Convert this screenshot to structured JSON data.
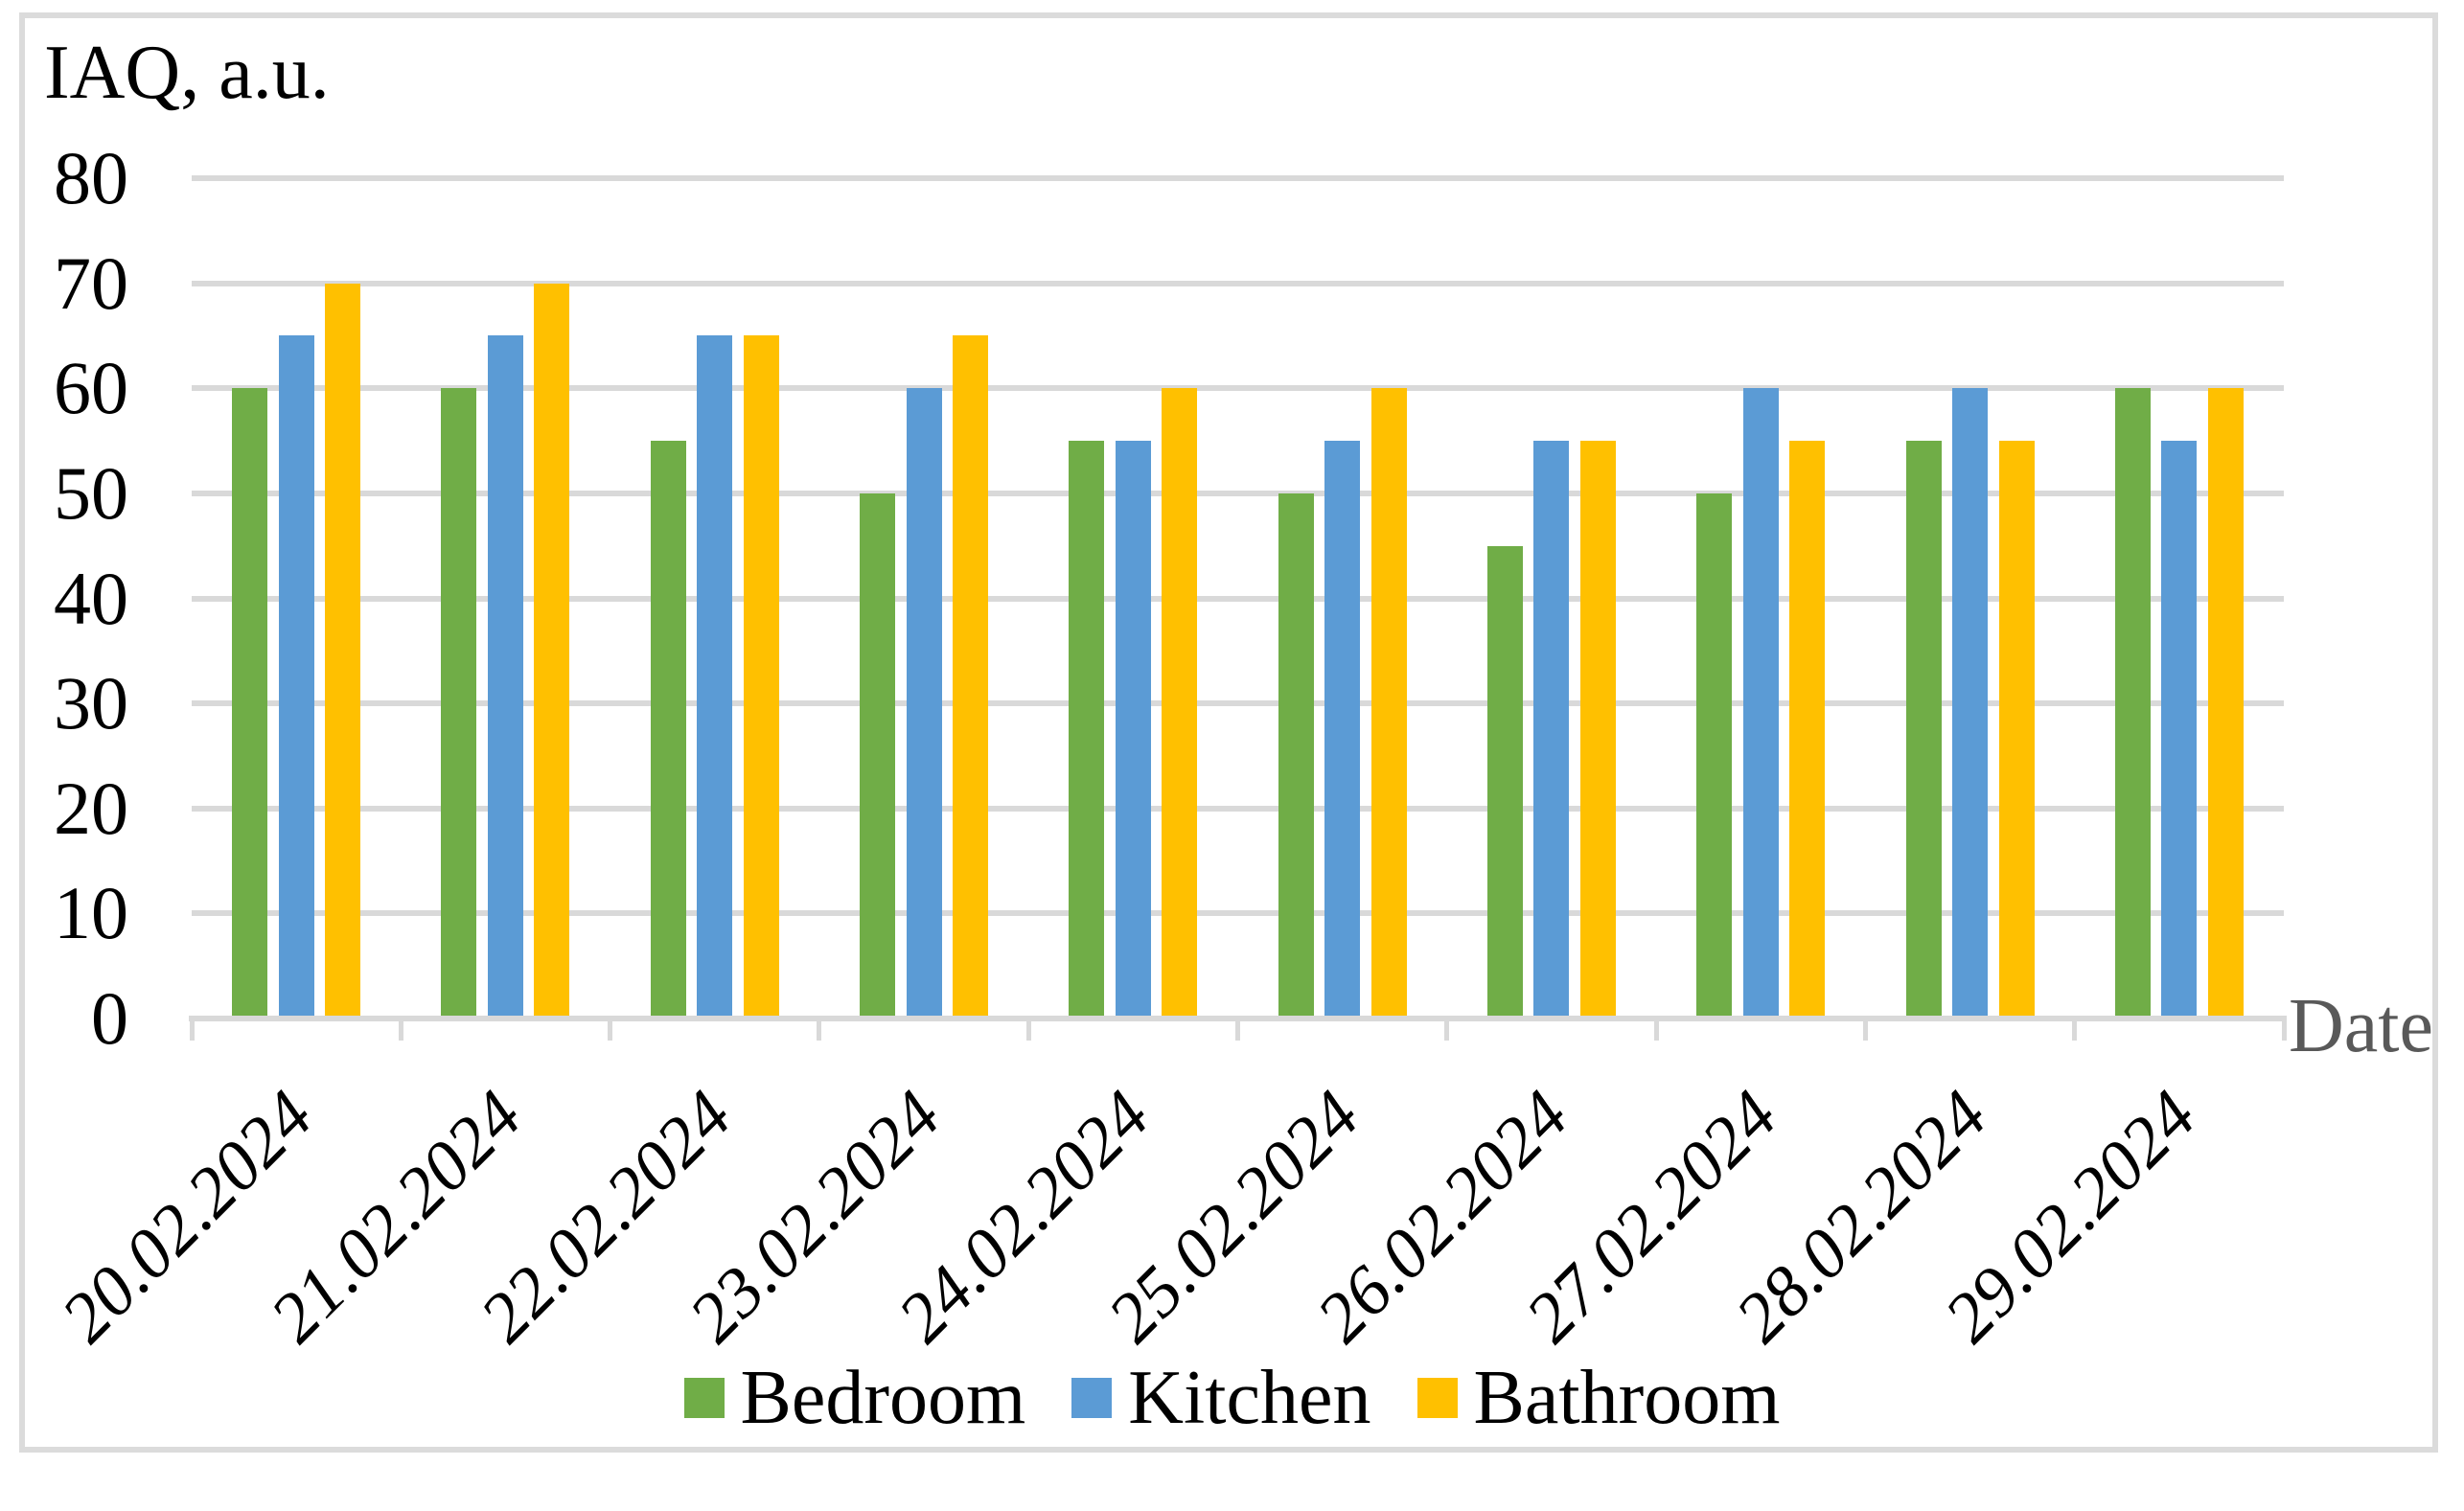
{
  "chart": {
    "y_axis_title": "IAQ, a.u.",
    "x_axis_title": "Date"
  },
  "colors": {
    "gridline": "#d9d9d9",
    "axis_line": "#d9d9d9",
    "chart_border": "#dbdbdb",
    "x_axis_title_text": "#595959",
    "text": "#000000"
  },
  "chart_data": {
    "type": "bar",
    "title": "",
    "ylabel": "IAQ, a.u.",
    "xlabel": "Date",
    "ylim": [
      0,
      80
    ],
    "yticks": [
      0,
      10,
      20,
      30,
      40,
      50,
      60,
      70,
      80
    ],
    "grid": true,
    "legend_position": "bottom",
    "categories": [
      "20.02.2024",
      "21.02.2024",
      "22.02.2024",
      "23.02.2024",
      "24.02.2024",
      "25.02.2024",
      "26.02.2024",
      "27.02.2024",
      "28.02.2024",
      "29.02.2024"
    ],
    "series": [
      {
        "name": "Bedroom",
        "color": "#70ad47",
        "values": [
          60,
          60,
          55,
          50,
          55,
          50,
          45,
          50,
          55,
          60
        ]
      },
      {
        "name": "Kitchen",
        "color": "#5b9bd5",
        "values": [
          65,
          65,
          65,
          60,
          55,
          55,
          55,
          60,
          60,
          55
        ]
      },
      {
        "name": "Bathroom",
        "color": "#ffc000",
        "values": [
          70,
          70,
          65,
          65,
          60,
          60,
          55,
          55,
          55,
          60
        ]
      }
    ]
  }
}
